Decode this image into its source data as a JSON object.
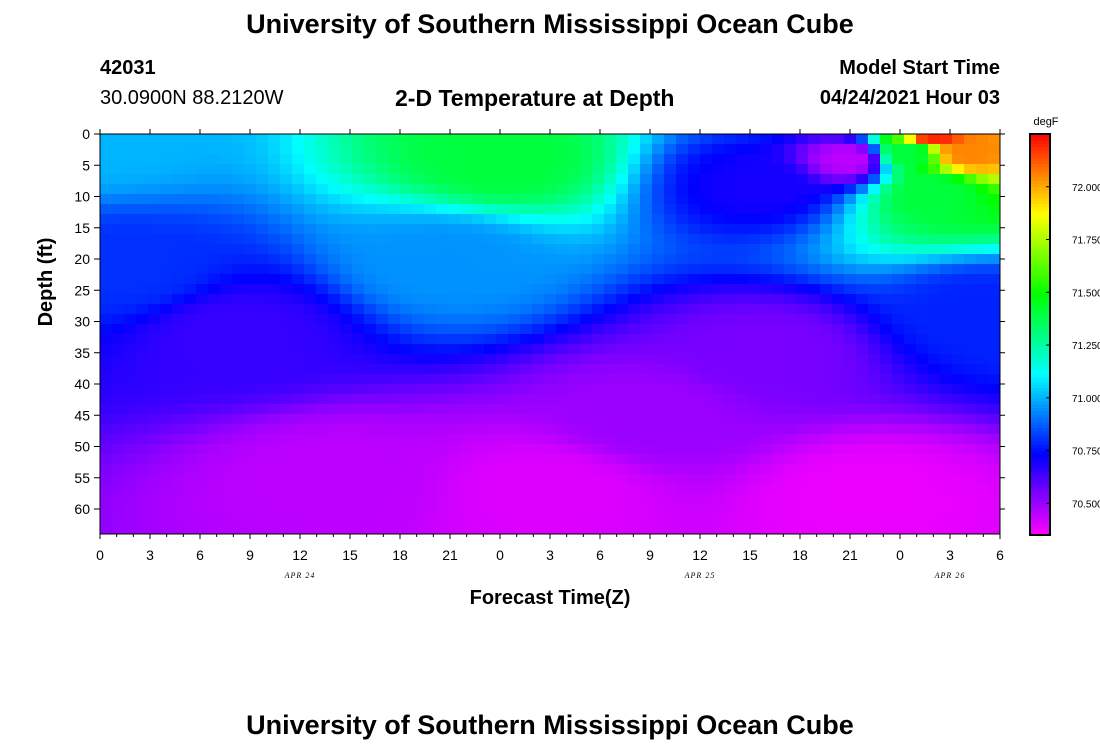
{
  "header": {
    "title": "University of Southern Mississippi Ocean Cube",
    "station": "42031",
    "coords": "30.0900N  88.2120W",
    "plot_title": "2-D Temperature at Depth",
    "model_label": "Model Start Time",
    "model_time": "04/24/2021 Hour 03"
  },
  "footer": {
    "title": "University of Southern Mississippi Ocean Cube"
  },
  "chart_data": {
    "type": "heatmap",
    "title": "2-D Temperature at Depth",
    "xlabel": "Forecast Time(Z)",
    "ylabel": "Depth (ft)",
    "x_ticks": [
      "0",
      "3",
      "6",
      "9",
      "12",
      "15",
      "18",
      "21",
      "0",
      "3",
      "6",
      "9",
      "12",
      "15",
      "18",
      "21",
      "0",
      "3",
      "6"
    ],
    "x_range_hours": [
      0,
      54
    ],
    "date_labels": [
      {
        "text": "APR 24",
        "hour": 12
      },
      {
        "text": "APR 25",
        "hour": 36
      },
      {
        "text": "APR 26",
        "hour": 51
      }
    ],
    "y_ticks": [
      0,
      5,
      10,
      15,
      20,
      25,
      30,
      35,
      40,
      45,
      50,
      55,
      60
    ],
    "ylim": [
      0,
      64
    ],
    "y_inverted": true,
    "colorbar": {
      "unit": "degF",
      "ticks": [
        "72.000",
        "71.750",
        "71.500",
        "71.250",
        "71.000",
        "70.750",
        "70.500"
      ],
      "tick_values": [
        72.0,
        71.75,
        71.5,
        71.25,
        71.0,
        70.75,
        70.5
      ],
      "range": [
        70.35,
        72.25
      ]
    },
    "value_range": [
      70.4,
      72.2
    ],
    "features": [
      {
        "hour": 0,
        "depth": 0,
        "value": 71.0
      },
      {
        "hour": 1.5,
        "depth": 22,
        "value": 70.8
      },
      {
        "hour": 8,
        "depth": 32,
        "value": 70.65
      },
      {
        "hour": 14,
        "depth": 55,
        "value": 70.45
      },
      {
        "hour": 24,
        "depth": 4,
        "value": 71.4
      },
      {
        "hour": 21,
        "depth": 20,
        "value": 70.95
      },
      {
        "hour": 33,
        "depth": 45,
        "value": 70.5
      },
      {
        "hour": 27,
        "depth": 57,
        "value": 70.4
      },
      {
        "hour": 40,
        "depth": 8,
        "value": 70.7
      },
      {
        "hour": 40,
        "depth": 35,
        "value": 70.55
      },
      {
        "hour": 45,
        "depth": 4,
        "value": 70.45
      },
      {
        "hour": 46,
        "depth": 58,
        "value": 70.38
      },
      {
        "hour": 50,
        "depth": 0,
        "value": 72.2
      },
      {
        "hour": 52,
        "depth": 3,
        "value": 72.05
      },
      {
        "hour": 50,
        "depth": 9,
        "value": 71.4
      },
      {
        "hour": 48.5,
        "depth": 3,
        "value": 71.4
      },
      {
        "hour": 53,
        "depth": 28,
        "value": 70.78
      }
    ]
  }
}
